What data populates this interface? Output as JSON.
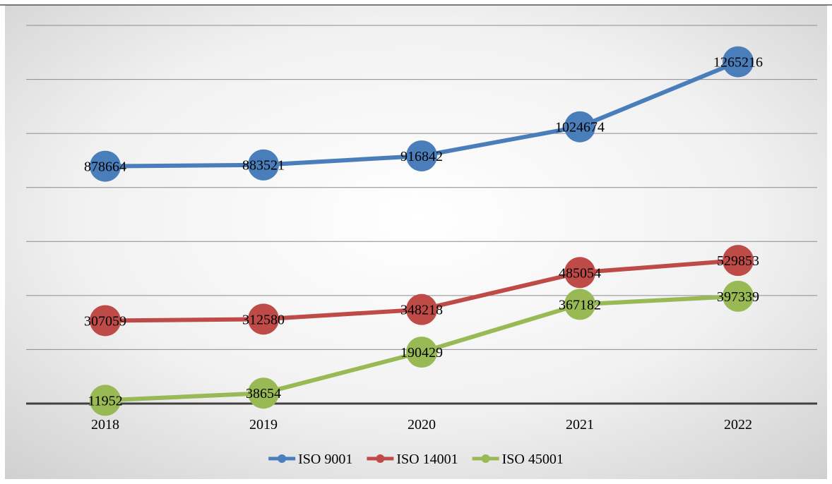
{
  "chart_data": {
    "type": "line",
    "categories": [
      "2018",
      "2019",
      "2020",
      "2021",
      "2022"
    ],
    "series": [
      {
        "name": "ISO 9001",
        "color": "#4a7ebb",
        "values": [
          878664,
          883521,
          916842,
          1024674,
          1265216
        ]
      },
      {
        "name": "ISO 14001",
        "color": "#be4b48",
        "values": [
          307059,
          312580,
          348218,
          485054,
          529853
        ]
      },
      {
        "name": "ISO 45001",
        "color": "#98b954",
        "values": [
          11952,
          38654,
          190429,
          367182,
          397339
        ]
      }
    ],
    "ylim": [
      0,
      1400000
    ],
    "y_gridline_step": 200000,
    "y_tick_labels_shown": false,
    "grid": true,
    "data_labels": true,
    "legend_position": "bottom"
  }
}
